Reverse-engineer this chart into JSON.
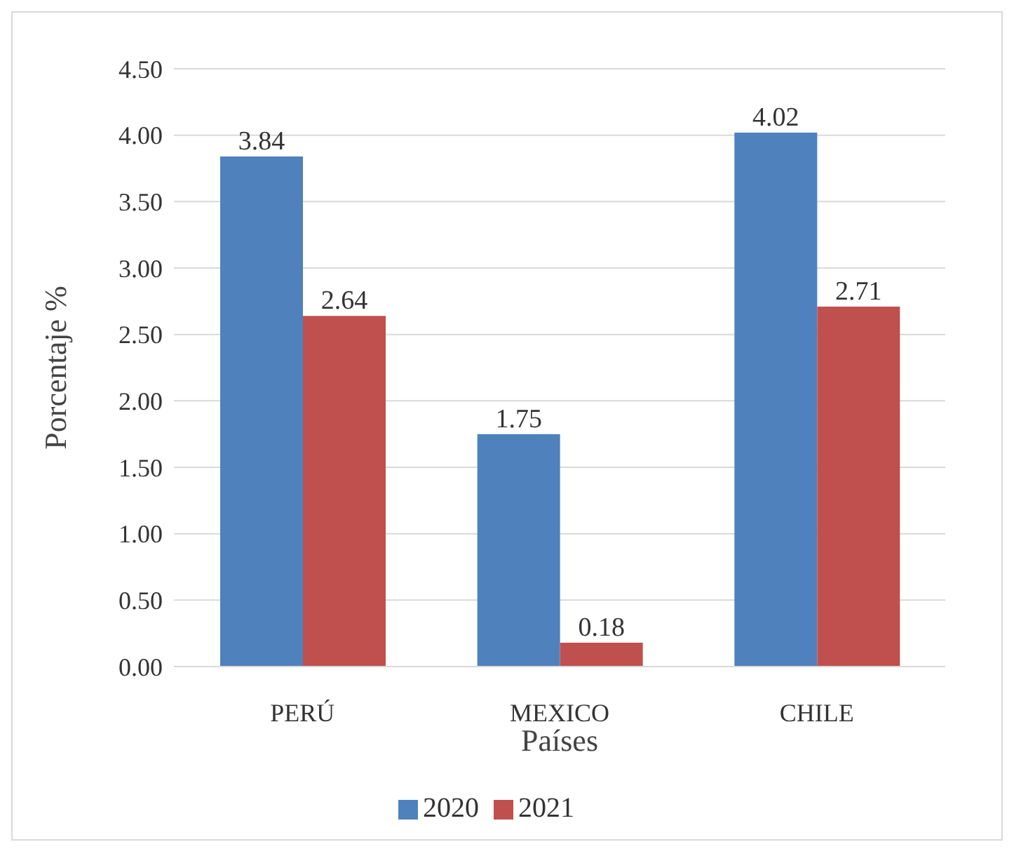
{
  "chart_data": {
    "type": "bar",
    "xlabel": "Países",
    "ylabel": "Porcentaje %",
    "categories": [
      "PERÚ",
      "MEXICO",
      "CHILE"
    ],
    "series": [
      {
        "name": "2020",
        "color": "#4f81bd",
        "values": [
          3.84,
          1.75,
          4.02
        ]
      },
      {
        "name": "2021",
        "color": "#c0504d",
        "values": [
          2.64,
          0.18,
          2.71
        ]
      }
    ],
    "ylim": [
      0,
      4.5
    ],
    "yticks": [
      {
        "value": 0,
        "label": "0.00"
      },
      {
        "value": 0.5,
        "label": "0.50"
      },
      {
        "value": 1,
        "label": "1.00"
      },
      {
        "value": 1.5,
        "label": "1.50"
      },
      {
        "value": 2,
        "label": "2.00"
      },
      {
        "value": 2.5,
        "label": "2.50"
      },
      {
        "value": 3,
        "label": "3.00"
      },
      {
        "value": 3.5,
        "label": "3.50"
      },
      {
        "value": 4,
        "label": "4.00"
      },
      {
        "value": 4.5,
        "label": "4.50"
      }
    ],
    "grid": "y",
    "legend": "bottom",
    "data_labels": true
  }
}
